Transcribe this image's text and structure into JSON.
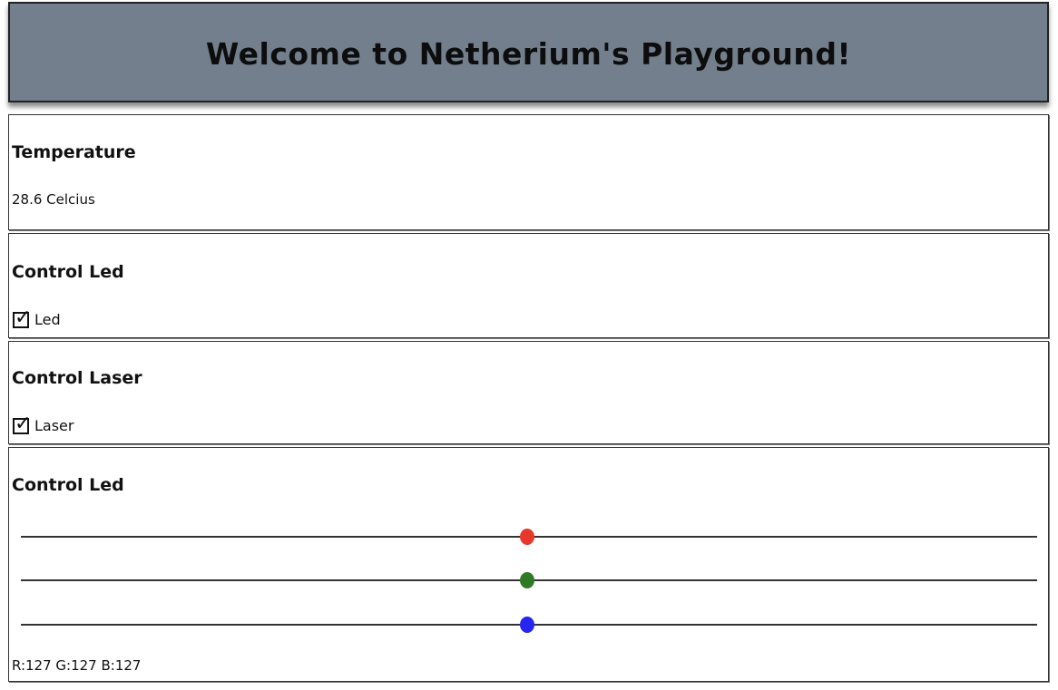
{
  "header": {
    "title": "Welcome to Netherium's Playground!"
  },
  "temperature_panel": {
    "title": "Temperature",
    "reading": "28.6 Celcius"
  },
  "led_panel": {
    "title": "Control Led",
    "checkbox_label": "Led",
    "checked": true
  },
  "laser_panel": {
    "title": "Control Laser",
    "checkbox_label": "Laser",
    "checked": true
  },
  "rgb_panel": {
    "title": "Control Led",
    "sliders": [
      {
        "name": "red",
        "value": 127,
        "max": 255,
        "color": "#e8382c"
      },
      {
        "name": "green",
        "value": 127,
        "max": 255,
        "color": "#2f7a24"
      },
      {
        "name": "blue",
        "value": 127,
        "max": 255,
        "color": "#2626f0"
      }
    ],
    "readout": "R:127 G:127 B:127"
  },
  "icons": {
    "checkbox_tick": "check-icon"
  }
}
